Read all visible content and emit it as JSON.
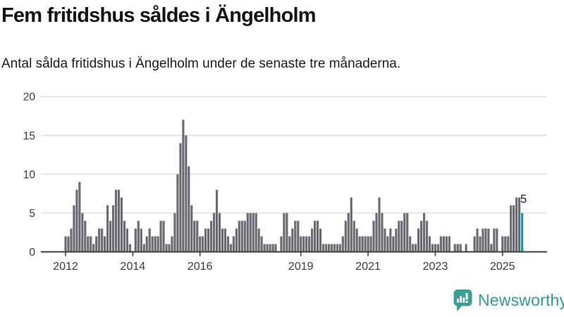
{
  "header": {
    "title": "Fem fritidshus såldes i Ängelholm",
    "subtitle": "Antal sålda fritidshus i Ängelholm under de senaste tre månaderna."
  },
  "chart_data": {
    "type": "bar",
    "title": "Fem fritidshus såldes i Ängelholm",
    "subtitle": "Antal sålda fritidshus i Ängelholm under de senaste tre månaderna.",
    "x_start": "2012-01",
    "x_end": "2025-08",
    "x_frequency": "monthly",
    "values": [
      2,
      2,
      3,
      6,
      8,
      9,
      5,
      4,
      2,
      2,
      1,
      2,
      3,
      3,
      2,
      6,
      4,
      6,
      8,
      8,
      7,
      4,
      3,
      1,
      0,
      3,
      4,
      3,
      1,
      2,
      3,
      2,
      2,
      2,
      4,
      4,
      1,
      1,
      2,
      5,
      10,
      14,
      17,
      15,
      11,
      6,
      4,
      4,
      2,
      2,
      3,
      3,
      4,
      5,
      8,
      5,
      3,
      3,
      2,
      1,
      2,
      3,
      4,
      4,
      4,
      5,
      5,
      5,
      5,
      3,
      2,
      1,
      1,
      1,
      1,
      1,
      0,
      2,
      5,
      5,
      2,
      3,
      4,
      4,
      2,
      2,
      2,
      2,
      3,
      4,
      4,
      3,
      1,
      1,
      1,
      1,
      1,
      1,
      1,
      2,
      4,
      5,
      7,
      4,
      3,
      2,
      2,
      2,
      2,
      2,
      4,
      5,
      7,
      5,
      3,
      2,
      3,
      2,
      3,
      4,
      4,
      5,
      5,
      2,
      1,
      1,
      3,
      4,
      5,
      4,
      2,
      1,
      1,
      1,
      2,
      2,
      2,
      2,
      0,
      1,
      1,
      1,
      0,
      1,
      0,
      0,
      2,
      3,
      2,
      3,
      3,
      3,
      1,
      3,
      3,
      0,
      2,
      2,
      2,
      6,
      6,
      7,
      7,
      5
    ],
    "highlight_last_bar": true,
    "last_bar_value": 5,
    "last_bar_label": "5",
    "ylim": [
      0,
      20
    ],
    "yticks": [
      0,
      5,
      10,
      15,
      20
    ],
    "xticks": [
      {
        "label": "2012",
        "month_index": 0
      },
      {
        "label": "2014",
        "month_index": 24
      },
      {
        "label": "2016",
        "month_index": 48
      },
      {
        "label": "2019",
        "month_index": 84
      },
      {
        "label": "2021",
        "month_index": 108
      },
      {
        "label": "2023",
        "month_index": 132
      },
      {
        "label": "2025",
        "month_index": 156
      }
    ],
    "grid": "horizontal-only",
    "legend": "none",
    "colors": {
      "bar": "#6c6c75",
      "bar_highlight": "#00a49c",
      "gridline": "#e3e3e3",
      "axis_line": "#3d3d3d",
      "tick_label": "#3c3c3c",
      "value_label": "#222222"
    }
  },
  "footer": {
    "brand": "Newsworthy",
    "logo_icon": "speech-bubble-bar-chart-icon",
    "brand_color": "#2f9c94",
    "logo_color": "#3aa096"
  }
}
